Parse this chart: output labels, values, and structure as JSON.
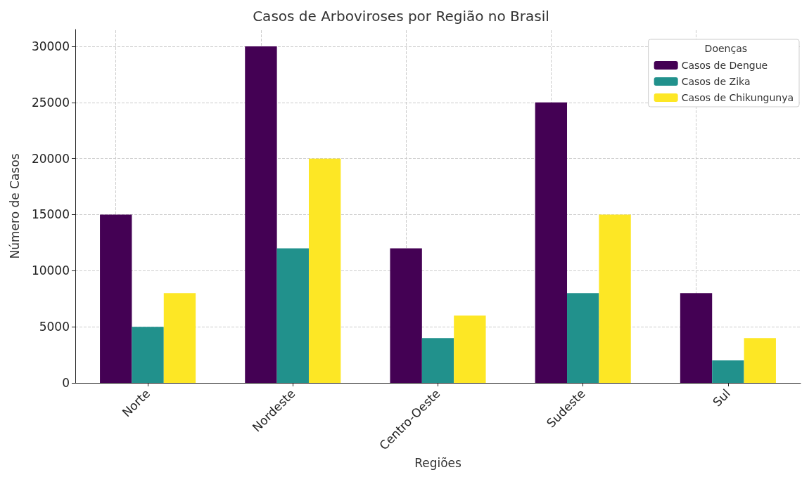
{
  "chart_data": {
    "type": "bar",
    "title": "Casos de Arboviroses por Região no Brasil",
    "xlabel": "Regiões",
    "ylabel": "Número de Casos",
    "legend_title": "Doenças",
    "categories": [
      "Norte",
      "Nordeste",
      "Centro-Oeste",
      "Sudeste",
      "Sul"
    ],
    "series": [
      {
        "name": "Casos de Dengue",
        "color": "#440154",
        "values": [
          15000,
          30000,
          12000,
          25000,
          8000
        ]
      },
      {
        "name": "Casos de Zika",
        "color": "#21918c",
        "values": [
          5000,
          12000,
          4000,
          8000,
          2000
        ]
      },
      {
        "name": "Casos de Chikungunya",
        "color": "#fde725",
        "values": [
          8000,
          20000,
          6000,
          15000,
          4000
        ]
      }
    ],
    "ylim": [
      0,
      31500
    ],
    "yticks": [
      0,
      5000,
      10000,
      15000,
      20000,
      25000,
      30000
    ],
    "grid": true,
    "legend": "top right"
  }
}
